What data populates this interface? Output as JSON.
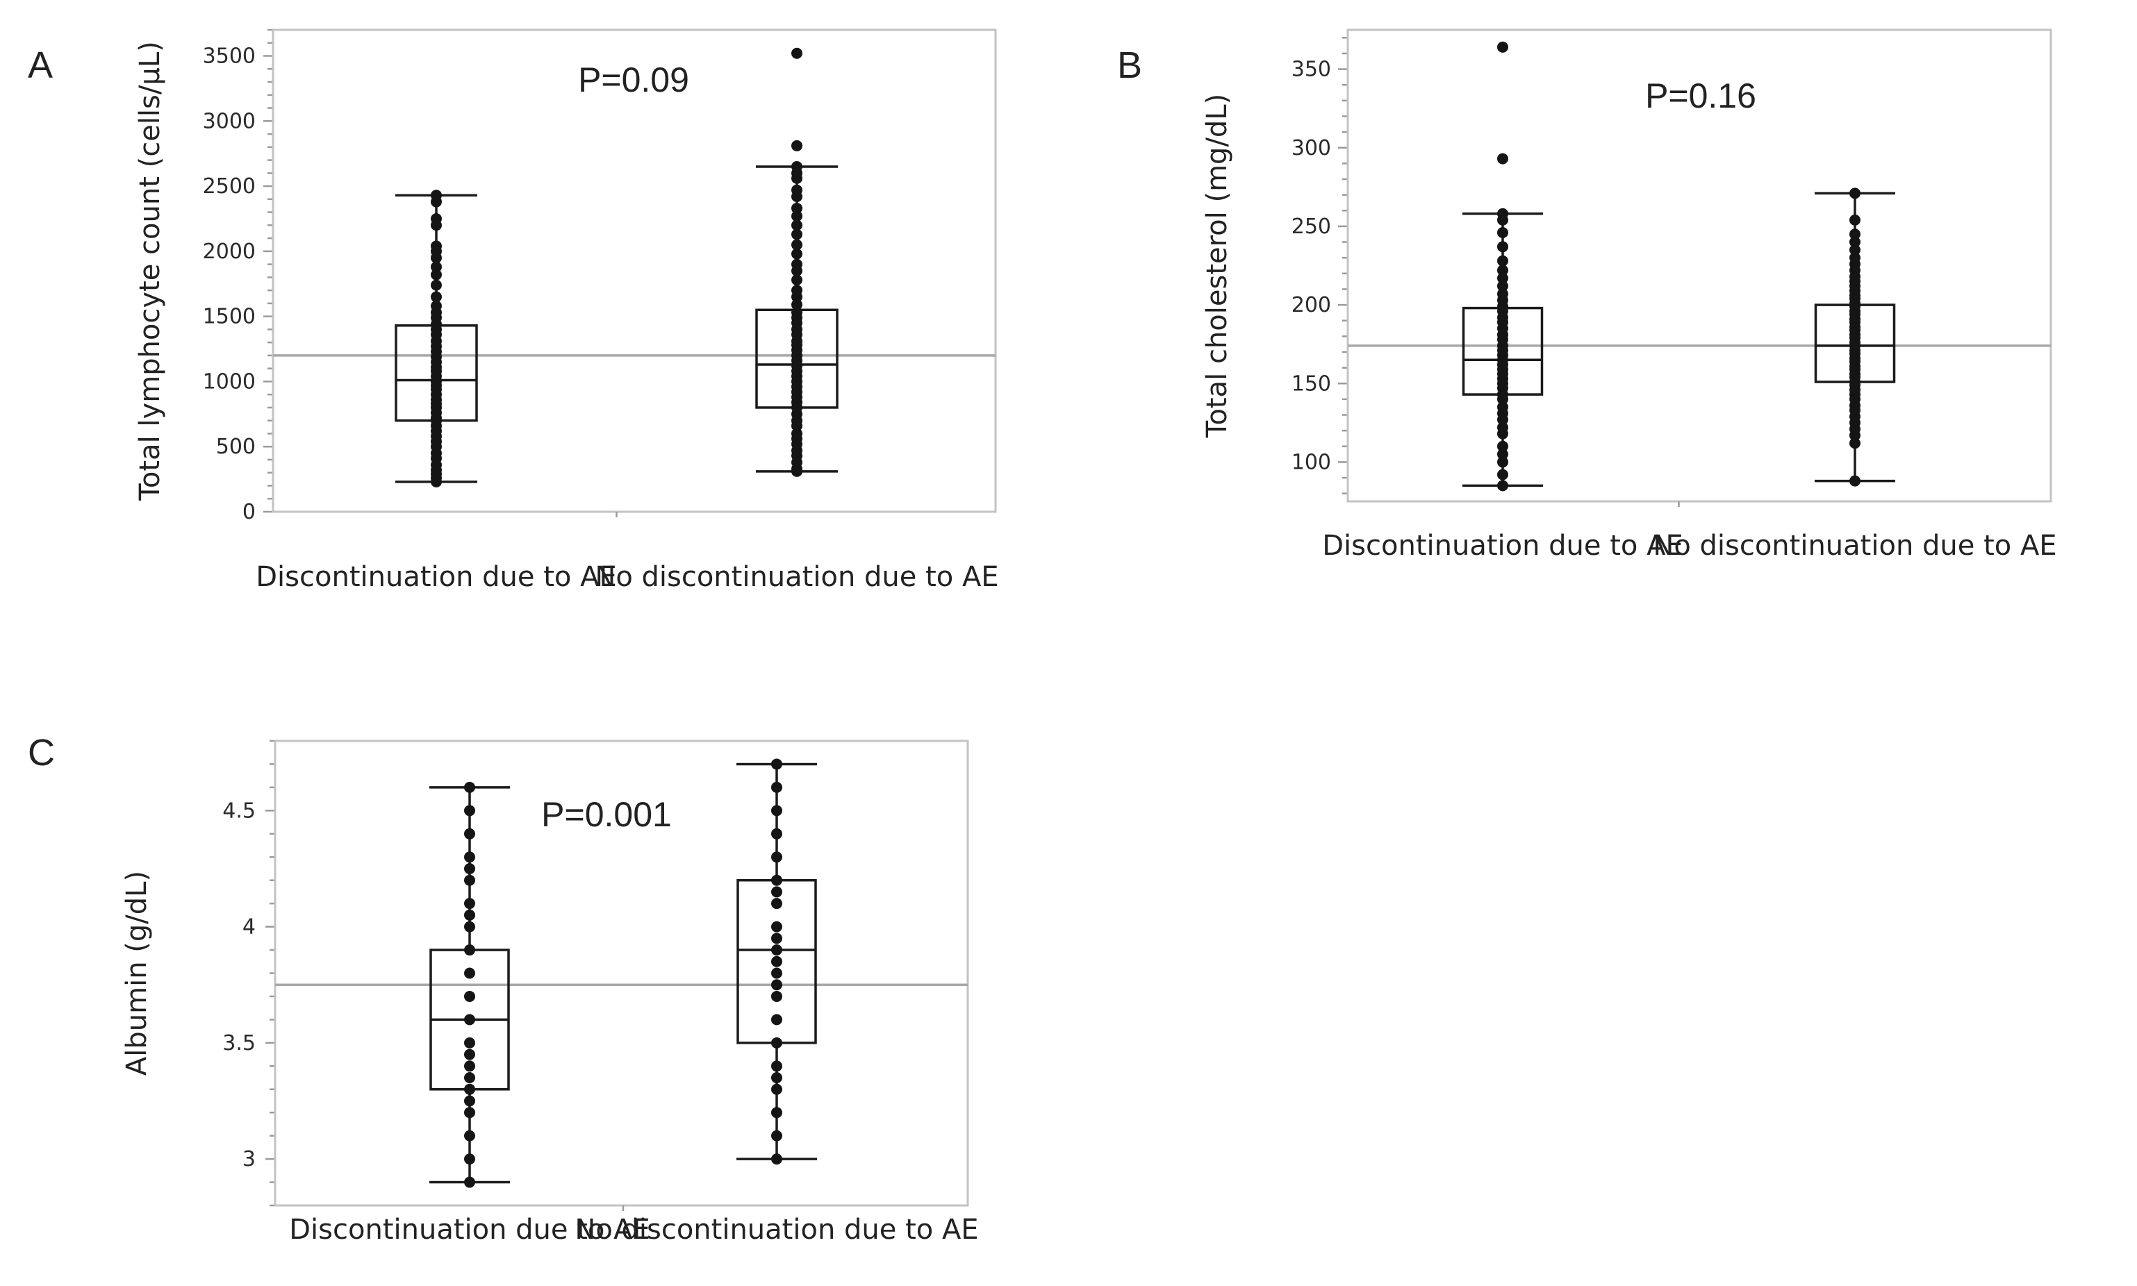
{
  "figure": {
    "panels_count": 3
  },
  "chart_data": [
    {
      "panel": "A",
      "type": "box",
      "ylabel": "Total lymphocyte count (cells/μL)",
      "ylim": [
        0,
        3700
      ],
      "yticks": [
        0,
        500,
        1000,
        1500,
        2000,
        2500,
        3000,
        3500
      ],
      "minor_step": 100,
      "annotation": "P=0.09",
      "reference_line": 1200,
      "categories": [
        "Discontinuation due to AE",
        "No discontinuation due to AE"
      ],
      "boxes": [
        {
          "min": 230,
          "q1": 700,
          "median": 1010,
          "q3": 1430,
          "max": 2430,
          "outliers": []
        },
        {
          "min": 310,
          "q1": 800,
          "median": 1130,
          "q3": 1550,
          "max": 2650,
          "outliers": [
            2810,
            3520
          ]
        }
      ],
      "points": [
        [
          230,
          260,
          290,
          320,
          360,
          410,
          450,
          500,
          540,
          580,
          620,
          660,
          700,
          720,
          760,
          800,
          830,
          860,
          900,
          940,
          970,
          1000,
          1040,
          1080,
          1110,
          1150,
          1190,
          1230,
          1270,
          1310,
          1360,
          1400,
          1440,
          1490,
          1530,
          1580,
          1650,
          1740,
          1820,
          1880,
          1950,
          2000,
          2040,
          2200,
          2250,
          2380,
          2430
        ],
        [
          310,
          330,
          380,
          430,
          470,
          520,
          560,
          600,
          660,
          700,
          750,
          800,
          840,
          880,
          920,
          960,
          1000,
          1040,
          1080,
          1120,
          1160,
          1200,
          1240,
          1280,
          1310,
          1360,
          1400,
          1450,
          1490,
          1530,
          1590,
          1650,
          1700,
          1780,
          1850,
          1900,
          1980,
          2050,
          2130,
          2200,
          2270,
          2330,
          2420,
          2470,
          2560,
          2600,
          2650,
          2810,
          3520
        ]
      ]
    },
    {
      "panel": "B",
      "type": "box",
      "ylabel": "Total cholesterol (mg/dL)",
      "ylim": [
        75,
        375
      ],
      "yticks": [
        100,
        150,
        200,
        250,
        300,
        350
      ],
      "minor_step": 10,
      "annotation": "P=0.16",
      "reference_line": 174,
      "categories": [
        "Discontinuation due to AE",
        "No discontinuation due to AE"
      ],
      "boxes": [
        {
          "min": 85,
          "q1": 143,
          "median": 165,
          "q3": 198,
          "max": 258,
          "outliers": [
            293,
            364
          ]
        },
        {
          "min": 88,
          "q1": 151,
          "median": 174,
          "q3": 200,
          "max": 271,
          "outliers": []
        }
      ],
      "points": [
        [
          85,
          92,
          100,
          105,
          110,
          118,
          122,
          127,
          131,
          135,
          140,
          143,
          147,
          150,
          153,
          156,
          159,
          162,
          165,
          168,
          171,
          174,
          178,
          181,
          185,
          189,
          192,
          196,
          199,
          203,
          207,
          212,
          217,
          222,
          228,
          237,
          246,
          254,
          258,
          293,
          364
        ],
        [
          88,
          112,
          117,
          121,
          125,
          129,
          133,
          136,
          140,
          143,
          146,
          149,
          151,
          154,
          156,
          159,
          161,
          164,
          166,
          169,
          171,
          174,
          176,
          179,
          181,
          184,
          186,
          189,
          191,
          194,
          196,
          199,
          201,
          204,
          206,
          209,
          212,
          215,
          218,
          222,
          226,
          230,
          235,
          240,
          245,
          254,
          271
        ]
      ]
    },
    {
      "panel": "C",
      "type": "box",
      "ylabel": "Albumin (g/dL)",
      "ylim": [
        2.8,
        4.8
      ],
      "yticks": [
        3,
        3.5,
        4,
        4.5
      ],
      "minor_step": 0.1,
      "annotation": "P=0.001",
      "reference_line": 3.75,
      "categories": [
        "Discontinuation due to AE",
        "No discontinuation due to AE"
      ],
      "boxes": [
        {
          "min": 2.9,
          "q1": 3.3,
          "median": 3.6,
          "q3": 3.9,
          "max": 4.6,
          "outliers": []
        },
        {
          "min": 3.0,
          "q1": 3.5,
          "median": 3.9,
          "q3": 4.2,
          "max": 4.7,
          "outliers": []
        }
      ],
      "points": [
        [
          2.9,
          3.0,
          3.1,
          3.2,
          3.25,
          3.3,
          3.35,
          3.4,
          3.45,
          3.5,
          3.6,
          3.7,
          3.8,
          3.9,
          4.0,
          4.05,
          4.1,
          4.2,
          4.25,
          4.3,
          4.4,
          4.5,
          4.6
        ],
        [
          3.0,
          3.1,
          3.2,
          3.3,
          3.35,
          3.4,
          3.5,
          3.6,
          3.7,
          3.75,
          3.8,
          3.85,
          3.9,
          3.95,
          4.0,
          4.1,
          4.15,
          4.2,
          4.3,
          4.4,
          4.5,
          4.6,
          4.7
        ]
      ]
    }
  ]
}
